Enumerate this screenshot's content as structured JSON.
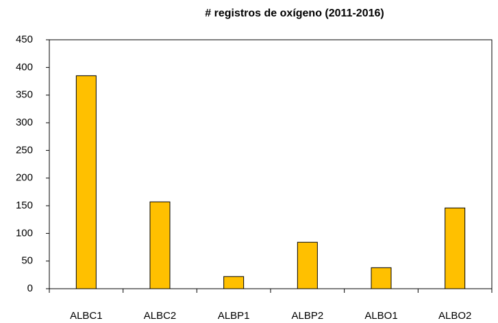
{
  "chart_data": {
    "type": "bar",
    "title": "# registros de oxígeno (2011-2016)",
    "categories": [
      "ALBC1",
      "ALBC2",
      "ALBP1",
      "ALBP2",
      "ALBO1",
      "ALBO2"
    ],
    "values": [
      385,
      157,
      22,
      84,
      38,
      146
    ],
    "color": "#ffc000",
    "ylim": [
      0,
      450
    ],
    "yticks": [
      0,
      50,
      100,
      150,
      200,
      250,
      300,
      350,
      400,
      450
    ],
    "grid": false
  }
}
